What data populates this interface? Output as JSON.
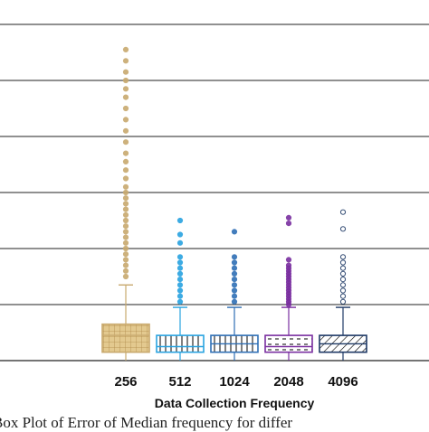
{
  "chart_data": {
    "type": "box",
    "xlabel": "Data Collection Frequency",
    "categories": [
      "256",
      "512",
      "1024",
      "2048",
      "4096"
    ],
    "grid": true,
    "yTicks": [
      0,
      1,
      2,
      3,
      4,
      5,
      6
    ],
    "ylim": [
      0,
      6
    ],
    "series": [
      {
        "category": "256",
        "q1": 0.15,
        "median": 0.45,
        "q3": 0.65,
        "whisker_low": 0.0,
        "whisker_high": 1.35,
        "color": "#c8a96e",
        "pattern": "grid",
        "outliers": [
          1.5,
          1.6,
          1.7,
          1.8,
          1.9,
          2.0,
          2.1,
          2.2,
          2.3,
          2.4,
          2.5,
          2.6,
          2.7,
          2.8,
          2.9,
          3.0,
          3.1,
          3.25,
          3.4,
          3.55,
          3.7,
          3.9,
          4.1,
          4.3,
          4.5,
          4.7,
          4.85,
          5.0,
          5.15,
          5.35,
          5.55
        ]
      },
      {
        "category": "512",
        "q1": 0.15,
        "median": 0.25,
        "q3": 0.45,
        "whisker_low": 0.0,
        "whisker_high": 0.95,
        "color": "#29a3e0",
        "pattern": "vertical",
        "outliers": [
          1.05,
          1.15,
          1.25,
          1.35,
          1.45,
          1.55,
          1.65,
          1.75,
          1.85,
          2.1,
          2.25,
          2.5
        ]
      },
      {
        "category": "1024",
        "q1": 0.15,
        "median": 0.3,
        "q3": 0.45,
        "whisker_low": 0.0,
        "whisker_high": 0.95,
        "color": "#2f6fb5",
        "pattern": "vertical",
        "outliers": [
          1.05,
          1.15,
          1.25,
          1.35,
          1.45,
          1.55,
          1.65,
          1.75,
          1.85,
          2.3
        ]
      },
      {
        "category": "2048",
        "q1": 0.15,
        "median": 0.25,
        "q3": 0.45,
        "whisker_low": 0.0,
        "whisker_high": 0.95,
        "color": "#7a2fa0",
        "pattern": "dashed",
        "outliers": [
          1.0,
          1.05,
          1.1,
          1.15,
          1.2,
          1.25,
          1.3,
          1.35,
          1.4,
          1.45,
          1.5,
          1.55,
          1.6,
          1.65,
          1.7,
          1.8,
          2.45,
          2.55
        ]
      },
      {
        "category": "4096",
        "q1": 0.15,
        "median": 0.3,
        "q3": 0.45,
        "whisker_low": 0.0,
        "whisker_high": 0.95,
        "color": "#1f3a66",
        "pattern": "diagonal",
        "outliers": [
          1.05,
          1.15,
          1.25,
          1.35,
          1.45,
          1.55,
          1.65,
          1.75,
          1.85,
          2.35,
          2.65
        ]
      }
    ]
  },
  "caption": "Box Plot of Error of Median frequency for differ"
}
